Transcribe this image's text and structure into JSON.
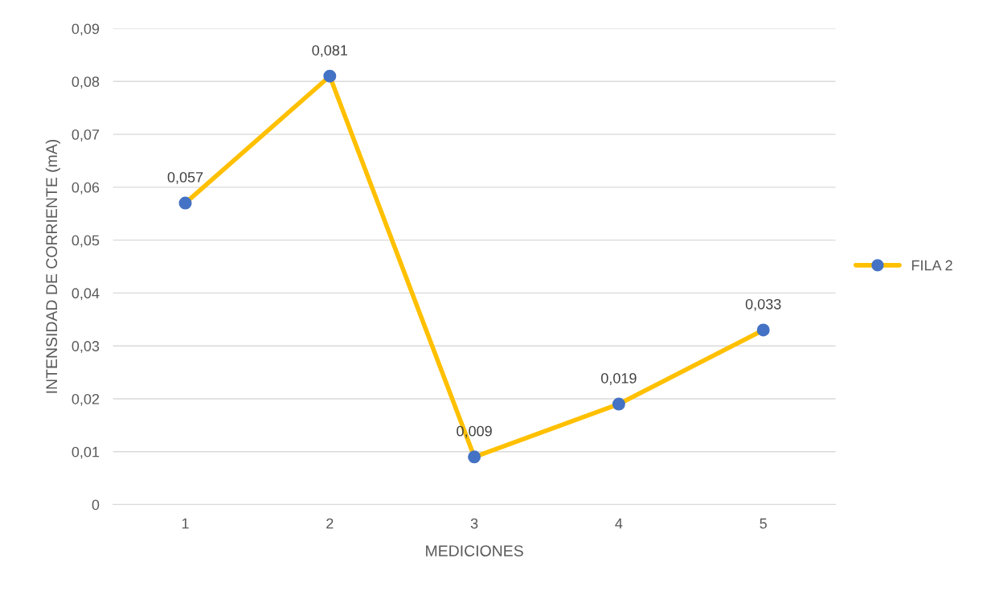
{
  "chart_data": {
    "type": "line",
    "xlabel": "MEDICIONES",
    "ylabel": "INTENSIDAD DE CORRIENTE (mA)",
    "categories": [
      "1",
      "2",
      "3",
      "4",
      "5"
    ],
    "series": [
      {
        "name": "FILA 2",
        "color": "#ffc000",
        "colors": [
          "#4472c4",
          "#4472c4",
          "#4472c4",
          "#4472c4",
          "#4472c4"
        ],
        "values": [
          0.057,
          0.081,
          0.009,
          0.019,
          0.033
        ],
        "value_labels": [
          "0,057",
          "0,081",
          "0,009",
          "0,019",
          "0,033"
        ]
      }
    ],
    "ylim": [
      0,
      0.09
    ],
    "yticks": [
      0,
      {
        "value": 0.01,
        "label": "0,01"
      },
      {
        "value": 0.02,
        "label": "0,02"
      },
      {
        "value": 0.03,
        "label": "0,03"
      },
      {
        "value": 0.04,
        "label": "0,04"
      },
      {
        "value": 0.05,
        "label": "0,05"
      },
      {
        "value": 0.06,
        "label": "0,06"
      },
      {
        "value": 0.07,
        "label": "0,07"
      },
      {
        "value": 0.08,
        "label": "0,08"
      },
      {
        "value": 0.09,
        "label": "0,09"
      }
    ],
    "grid": "y",
    "legend": "right",
    "marker": "circle",
    "line_style": "solid"
  }
}
